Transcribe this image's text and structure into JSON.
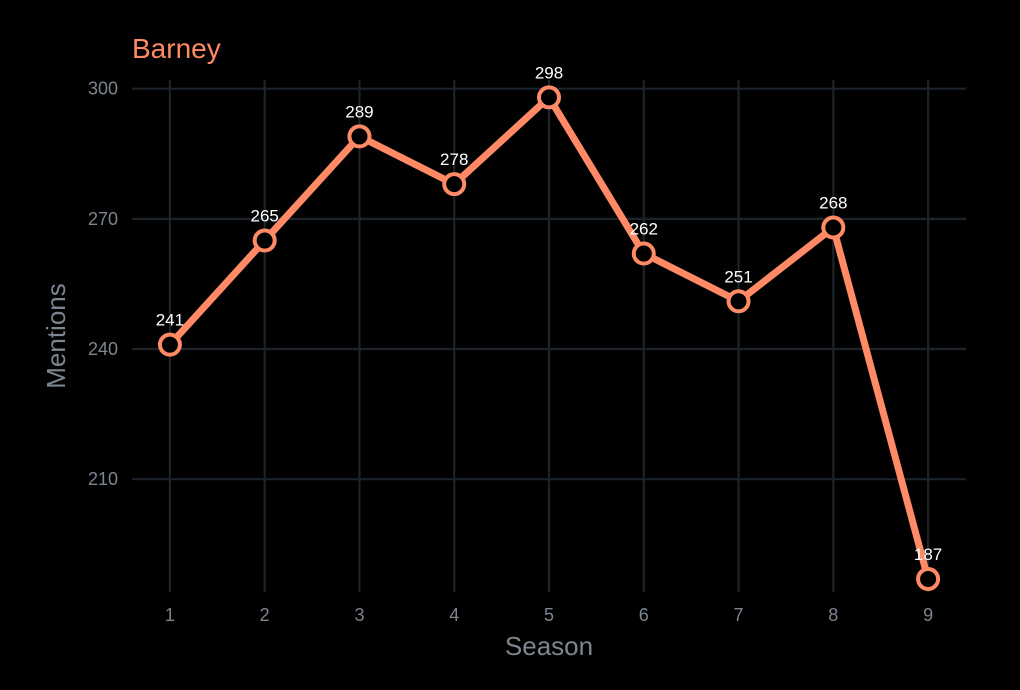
{
  "chart_data": {
    "type": "line",
    "title": "Barney",
    "xlabel": "Season",
    "ylabel": "Mentions",
    "x": [
      1,
      2,
      3,
      4,
      5,
      6,
      7,
      8,
      9
    ],
    "series": [
      {
        "name": "Barney",
        "values": [
          241,
          265,
          289,
          278,
          298,
          262,
          251,
          268,
          187
        ]
      }
    ],
    "yticks": [
      210,
      240,
      270,
      300
    ],
    "ylim": [
      184,
      302
    ],
    "xlim": [
      0.6,
      9.4
    ],
    "grid": true,
    "legend": "none",
    "colors": {
      "background": "#000000",
      "line": "#ff8a65",
      "marker_fill": "#000000",
      "grid": "#1c232b",
      "axis_text": "#7c8590",
      "data_label": "#ffffff"
    }
  }
}
